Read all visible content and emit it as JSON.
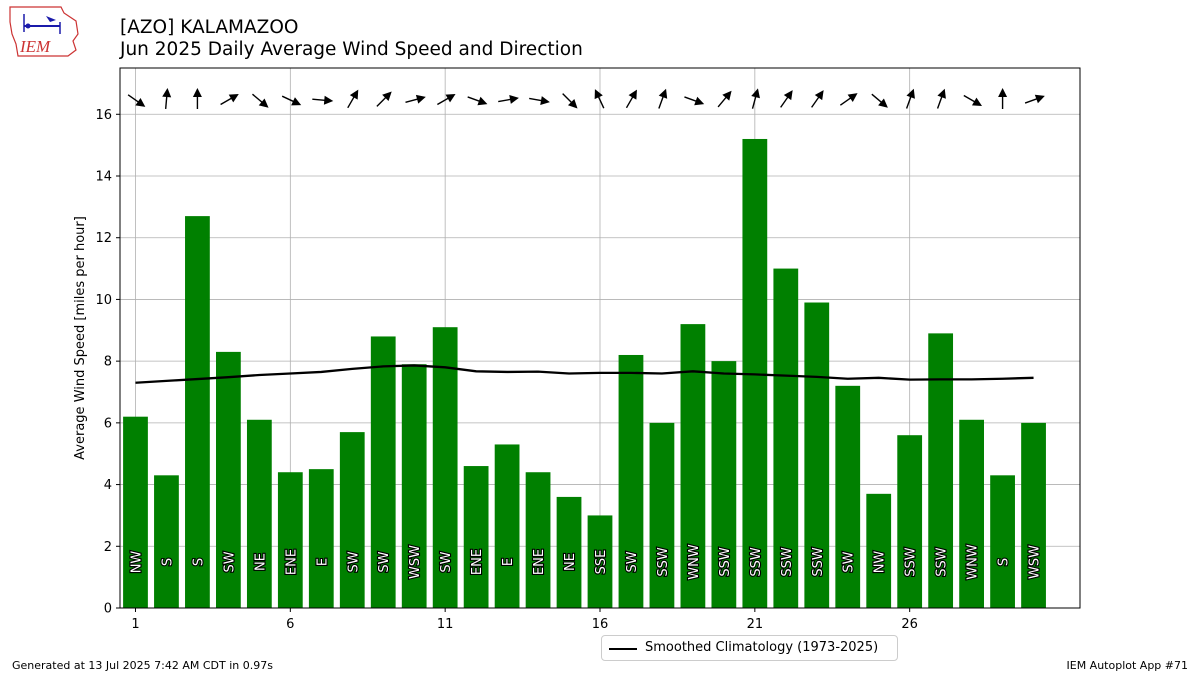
{
  "header": {
    "title": "[AZO] KALAMAZOO",
    "subtitle": "Jun 2025 Daily Average Wind Speed and Direction"
  },
  "logo": {
    "text": "IEM",
    "color": "#cc3333"
  },
  "footer": {
    "left": "Generated at 13 Jul 2025 7:42 AM CDT in 0.97s",
    "right": "IEM Autoplot App #71"
  },
  "legend": {
    "label": "Smoothed Climatology (1973-2025)"
  },
  "chart_data": {
    "type": "bar",
    "ylabel": "Average Wind Speed [miles per hour]",
    "ylim": [
      0,
      17.5
    ],
    "xlim": [
      0.5,
      31.5
    ],
    "yticks": [
      0,
      2,
      4,
      6,
      8,
      10,
      12,
      14,
      16
    ],
    "xticks": [
      1,
      6,
      11,
      16,
      21,
      26
    ],
    "grid": true,
    "legend_position": "bottom-center",
    "bar_color": "#008000",
    "days": [
      1,
      2,
      3,
      4,
      5,
      6,
      7,
      8,
      9,
      10,
      11,
      12,
      13,
      14,
      15,
      16,
      17,
      18,
      19,
      20,
      21,
      22,
      23,
      24,
      25,
      26,
      27,
      28,
      29,
      30
    ],
    "speed": [
      6.2,
      4.3,
      12.7,
      8.3,
      6.1,
      4.4,
      4.5,
      5.7,
      8.8,
      7.9,
      9.1,
      4.6,
      5.3,
      4.4,
      3.6,
      3.0,
      8.2,
      6.0,
      9.2,
      8.0,
      15.2,
      11.0,
      9.9,
      7.2,
      3.7,
      5.6,
      8.9,
      6.1,
      4.3,
      6.0
    ],
    "direction_labels": [
      "NW",
      "S",
      "S",
      "SW",
      "NE",
      "ENE",
      "E",
      "SW",
      "SW",
      "WSW",
      "SW",
      "ENE",
      "E",
      "ENE",
      "NE",
      "SSE",
      "SW",
      "SSW",
      "WNW",
      "SSW",
      "SSW",
      "SSW",
      "SSW",
      "SW",
      "NW",
      "SSW",
      "SSW",
      "WNW",
      "S",
      "WSW"
    ],
    "arrow_angles_deg": [
      -35,
      85,
      90,
      30,
      -40,
      -25,
      -5,
      60,
      45,
      15,
      30,
      -20,
      10,
      -10,
      -45,
      115,
      60,
      70,
      -20,
      50,
      75,
      55,
      55,
      35,
      -40,
      70,
      70,
      -30,
      90,
      20
    ],
    "series": [
      {
        "name": "Smoothed Climatology (1973-2025)",
        "type": "line",
        "color": "#000000",
        "values": [
          7.3,
          7.36,
          7.42,
          7.48,
          7.55,
          7.6,
          7.65,
          7.75,
          7.83,
          7.86,
          7.8,
          7.67,
          7.65,
          7.66,
          7.6,
          7.62,
          7.62,
          7.6,
          7.67,
          7.6,
          7.57,
          7.53,
          7.49,
          7.43,
          7.46,
          7.4,
          7.41,
          7.41,
          7.43,
          7.46
        ]
      }
    ]
  }
}
